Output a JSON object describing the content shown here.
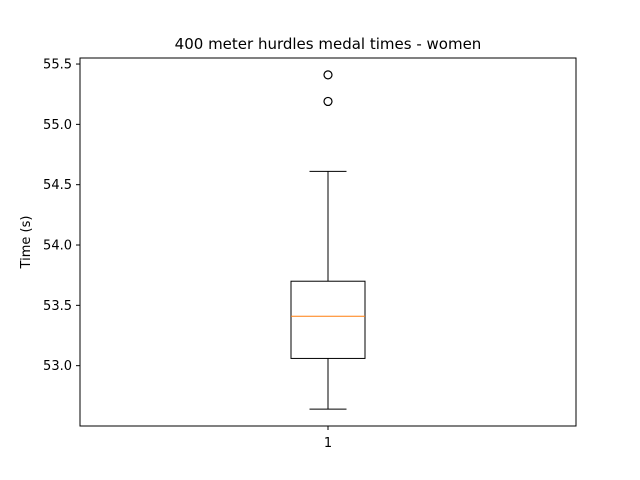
{
  "chart_data": {
    "type": "boxplot",
    "title": "400 meter hurdles medal times - women",
    "xlabel": "",
    "ylabel": "Time (s)",
    "categories": [
      "1"
    ],
    "boxes": [
      {
        "category": "1",
        "whisker_low": 52.64,
        "q1": 53.06,
        "median": 53.41,
        "q3": 53.7,
        "whisker_high": 54.61,
        "outliers": [
          55.19,
          55.41
        ]
      }
    ],
    "ylim": [
      52.5,
      55.55
    ],
    "yticks": [
      "53.0",
      "53.5",
      "54.0",
      "54.5",
      "55.0",
      "55.5"
    ],
    "grid": false,
    "colors": {
      "box": "#000000",
      "median": "#ff7f0e",
      "outlier": "#000000"
    }
  }
}
